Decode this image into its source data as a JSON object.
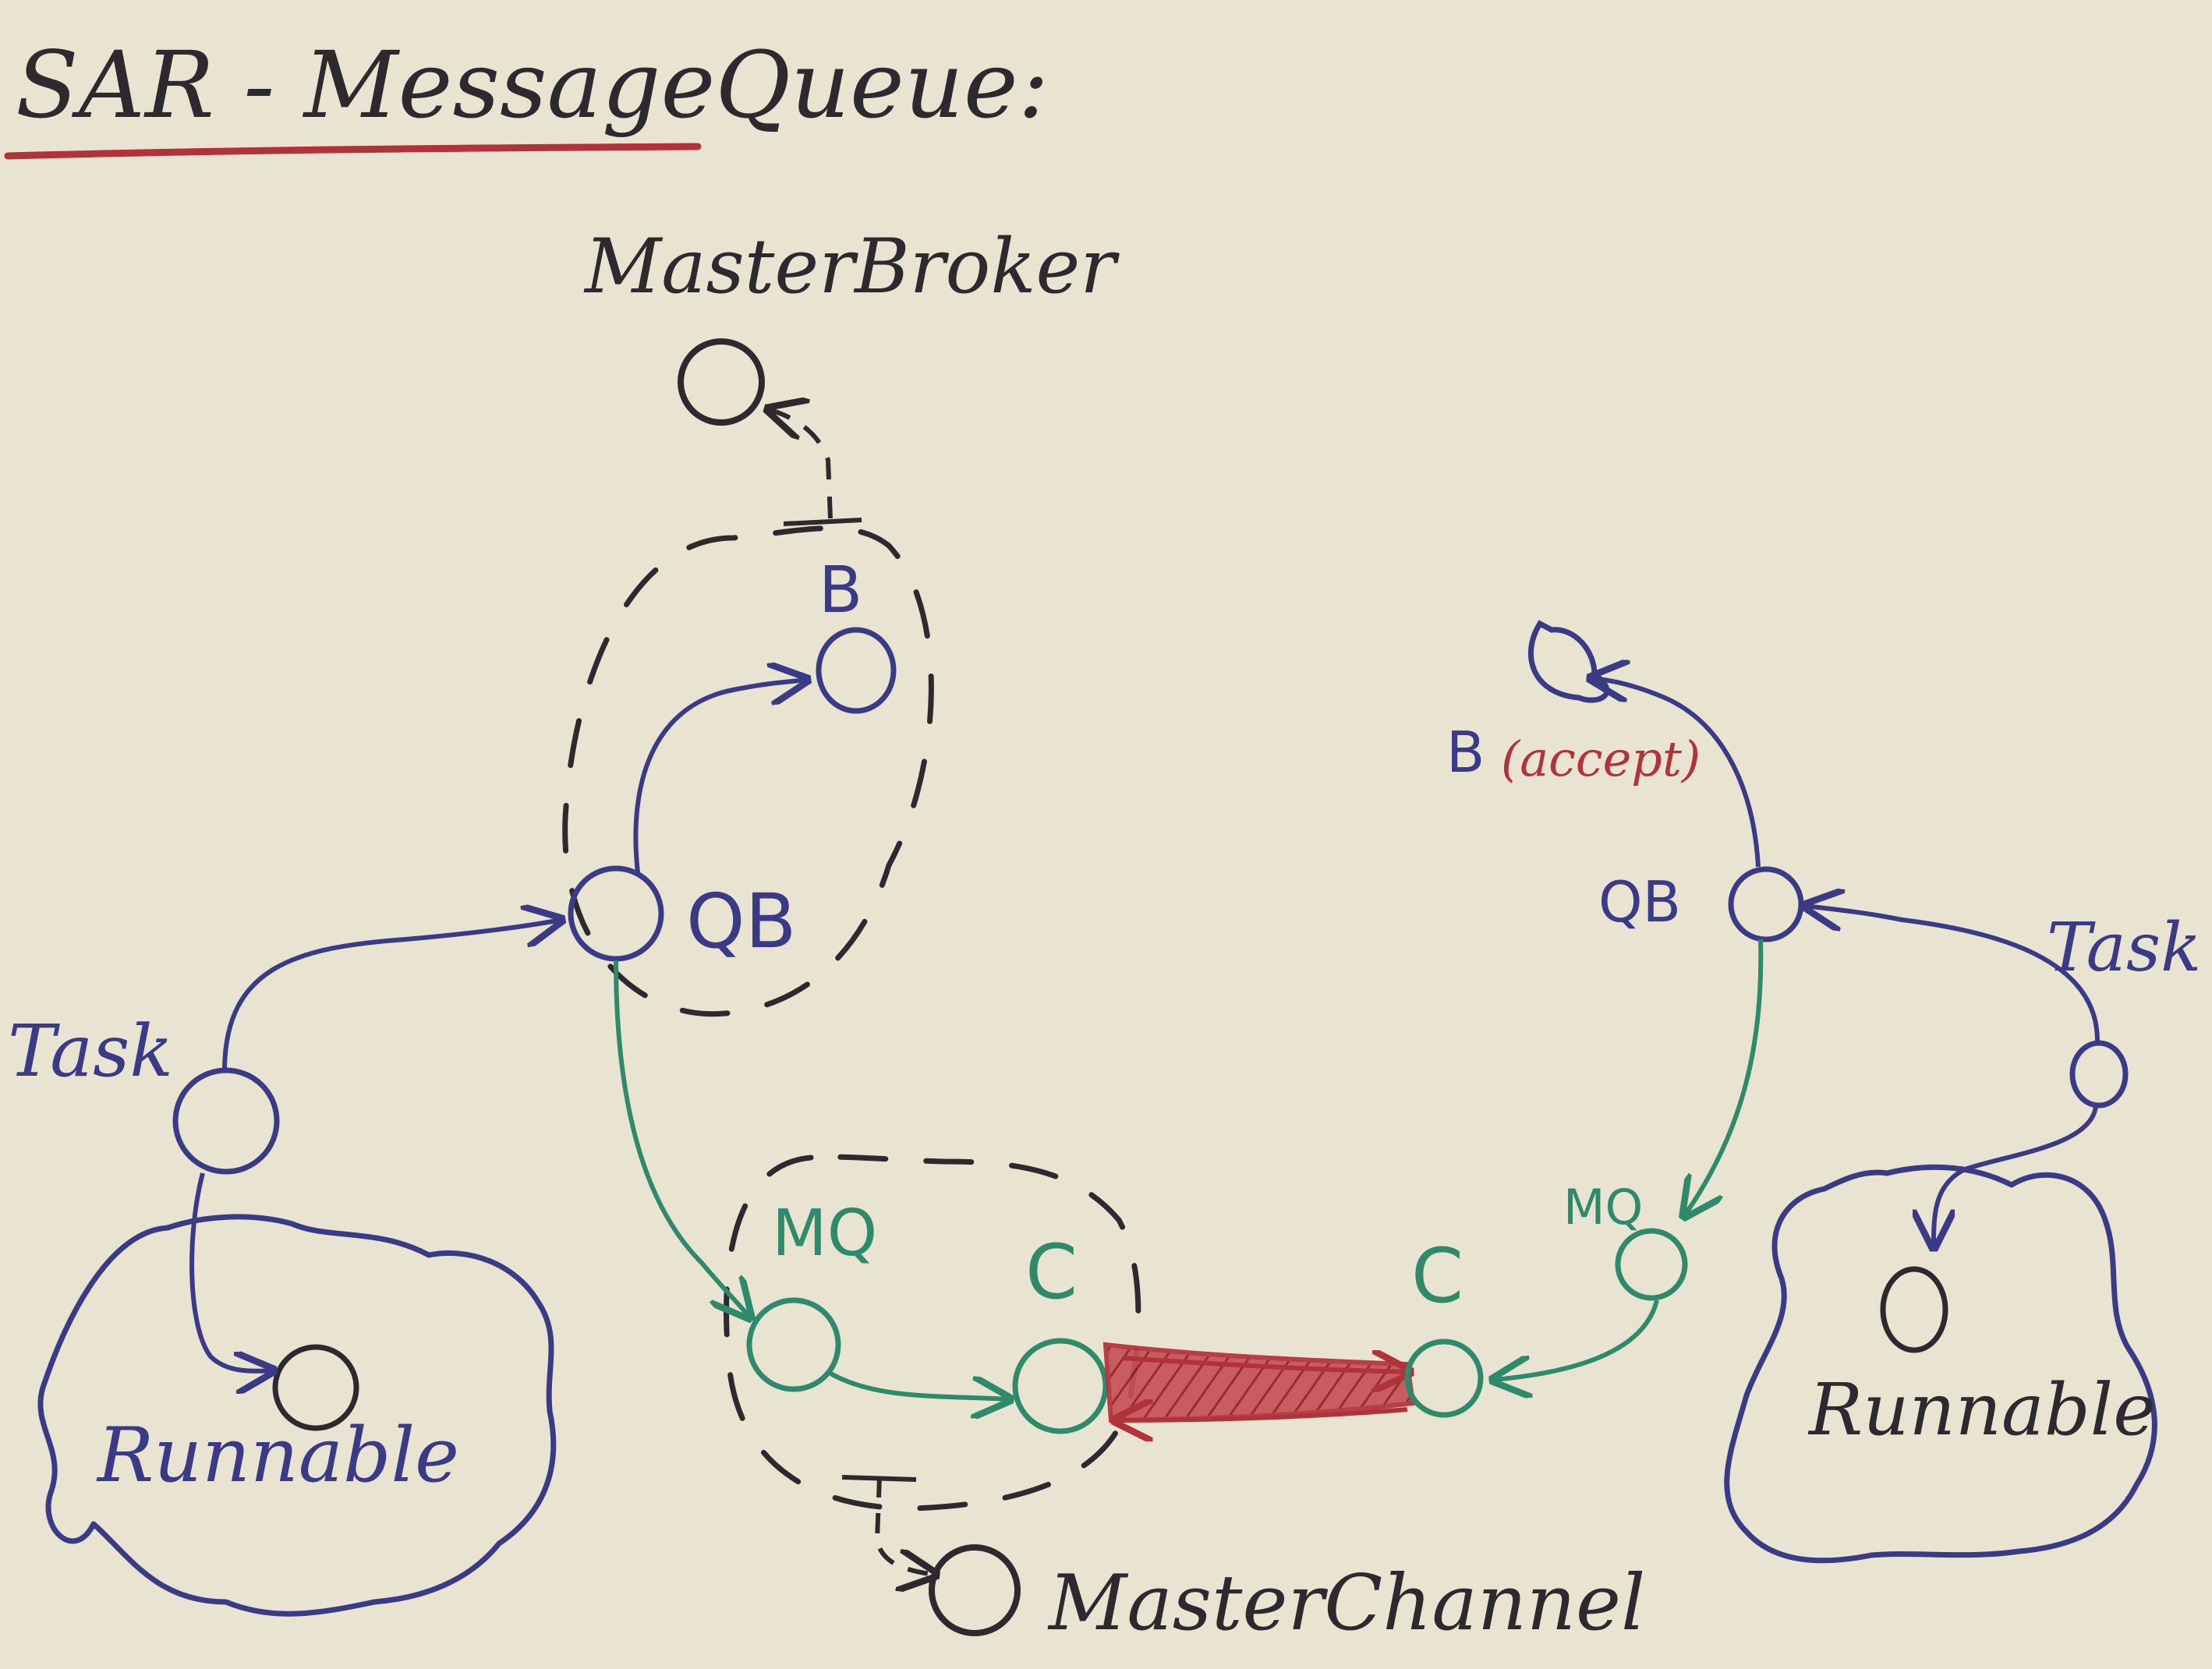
{
  "title": "SAR - MessageQueue:",
  "colors": {
    "paper": "#e9e4d2",
    "black_ink": "#2c2a2e",
    "blue_ink": "#3a3a86",
    "green_ink": "#2f8a6c",
    "red_ink": "#b2323c"
  },
  "labels": {
    "master_broker": "MasterBroker",
    "master_channel": "MasterChannel",
    "left_task": "Task",
    "right_task": "Task",
    "left_runnable": "Runnable",
    "right_runnable": "Runnable",
    "left_b": "B",
    "left_qb": "QB",
    "left_mq": "MQ",
    "left_c": "C",
    "right_b": "B",
    "right_b_note": "(accept)",
    "right_qb": "QB",
    "right_mq": "MQ",
    "right_c": "C"
  }
}
